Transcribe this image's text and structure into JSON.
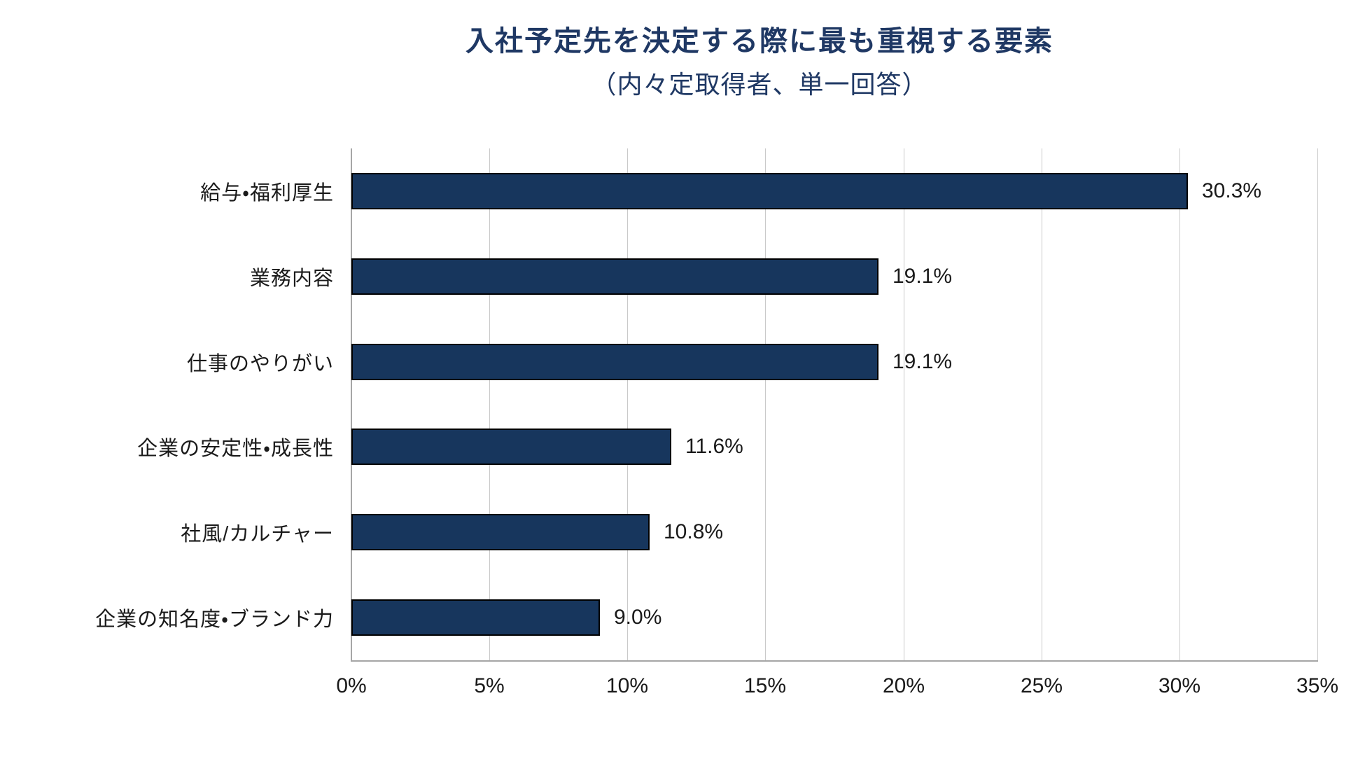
{
  "page": {
    "background_color": "#ffffff"
  },
  "chart_data": {
    "type": "bar",
    "orientation": "horizontal",
    "title": "入社予定先を決定する際に最も重視する要素",
    "subtitle": "（内々定取得者、単一回答）",
    "categories": [
      "給与・福利厚生",
      "業務内容",
      "仕事のやりがい",
      "企業の安定性・成長性",
      "社風/カルチャー",
      "企業の知名度・ブランド力"
    ],
    "values": [
      30.3,
      19.1,
      19.1,
      11.6,
      10.8,
      9.0
    ],
    "value_labels": [
      "30.3%",
      "19.1%",
      "19.1%",
      "11.6%",
      "10.8%",
      "9.0%"
    ],
    "x_ticks": [
      "0%",
      "5%",
      "10%",
      "15%",
      "20%",
      "25%",
      "30%",
      "35%"
    ],
    "x_tick_values": [
      0,
      5,
      10,
      15,
      20,
      25,
      30,
      35
    ],
    "xlim": [
      0,
      35
    ],
    "grid": true,
    "legend": "none",
    "colors": {
      "bar_fill": "#17365D",
      "bar_border": "#000000",
      "title": "#1F3864",
      "gridline": "#C9C9C9",
      "axis_line": "#A6A6A6",
      "text": "#1a1a1a"
    }
  }
}
